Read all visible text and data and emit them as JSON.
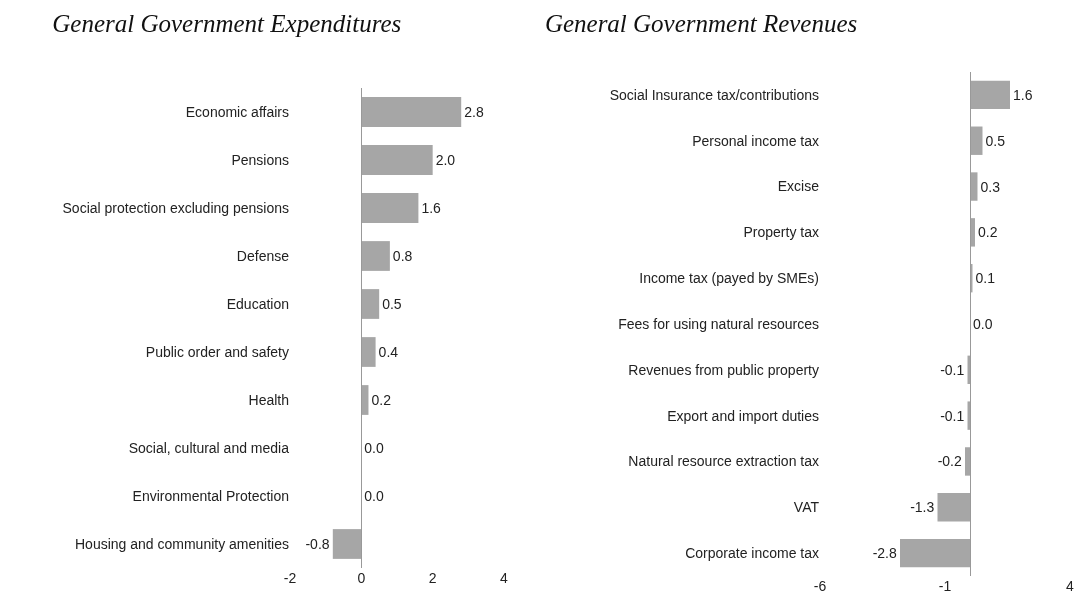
{
  "chart_data": [
    {
      "type": "bar",
      "orientation": "horizontal",
      "title": "General Government Expenditures",
      "categories": [
        "Economic affairs",
        "Pensions",
        "Social protection excluding pensions",
        "Defense",
        "Education",
        "Public order and safety",
        "Health",
        "Social, cultural and media",
        "Environmental Protection",
        "Housing and community amenities"
      ],
      "values": [
        2.8,
        2.0,
        1.6,
        0.8,
        0.5,
        0.4,
        0.2,
        0.0,
        0.0,
        -0.8
      ],
      "value_labels": [
        "2.8",
        "2.0",
        "1.6",
        "0.8",
        "0.5",
        "0.4",
        "0.2",
        "0.0",
        "0.0",
        "-0.8"
      ],
      "color": "#a6a6a6",
      "xlim": [
        -2,
        4
      ],
      "xticks": [
        -2,
        0,
        2,
        4
      ],
      "legend": false
    },
    {
      "type": "bar",
      "orientation": "horizontal",
      "title": "General Government Revenues",
      "categories": [
        "Social Insurance tax/contributions",
        "Personal income tax",
        "Excise",
        "Property tax",
        "Income tax (payed by SMEs)",
        "Fees for using natural resources",
        "Revenues from public property",
        "Export and import duties",
        "Natural resource extraction tax",
        "VAT",
        "Corporate income tax"
      ],
      "values": [
        1.6,
        0.5,
        0.3,
        0.2,
        0.1,
        0.0,
        -0.1,
        -0.1,
        -0.2,
        -1.3,
        -2.8
      ],
      "value_labels": [
        "1.6",
        "0.5",
        "0.3",
        "0.2",
        "0.1",
        "0.0",
        "-0.1",
        "-0.1",
        "-0.2",
        "-1.3",
        "-2.8"
      ],
      "color": "#a6a6a6",
      "xlim": [
        -6,
        4
      ],
      "xticks": [
        -6,
        -1,
        4
      ],
      "legend": false
    }
  ]
}
